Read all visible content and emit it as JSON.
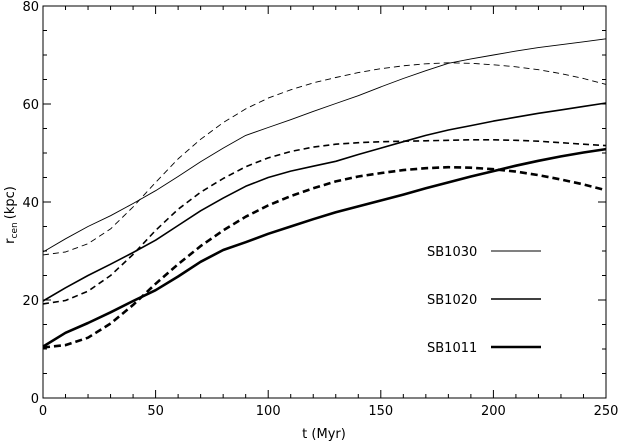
{
  "chart_data": {
    "type": "line",
    "title": "",
    "xlabel": "t (Myr)",
    "ylabel_main": "r",
    "ylabel_sub": "cen",
    "ylabel_unit": "(kpc)",
    "xlim": [
      0,
      250
    ],
    "ylim": [
      0,
      80
    ],
    "xticks": [
      0,
      50,
      100,
      150,
      200,
      250
    ],
    "yticks": [
      0,
      20,
      40,
      60,
      80
    ],
    "grid": false,
    "legend_placement": "right-center",
    "colors": {
      "line": "#000000",
      "axes": "#000000",
      "background": "#ffffff"
    },
    "series": [
      {
        "name": "SB1030",
        "style": "solid",
        "weight": "thin",
        "x": [
          0,
          10,
          20,
          30,
          40,
          50,
          60,
          70,
          80,
          90,
          100,
          110,
          120,
          130,
          140,
          150,
          160,
          170,
          180,
          190,
          200,
          210,
          220,
          230,
          240,
          250
        ],
        "y": [
          29.8,
          32.5,
          35,
          37.2,
          39.7,
          42.3,
          45.2,
          48.2,
          51,
          53.6,
          55.2,
          56.8,
          58.5,
          60.1,
          61.7,
          63.5,
          65.2,
          66.8,
          68.3,
          69.2,
          70,
          70.8,
          71.5,
          72.1,
          72.7,
          73.3
        ]
      },
      {
        "name": "",
        "style": "dashed",
        "weight": "thin",
        "x": [
          0,
          10,
          20,
          30,
          40,
          50,
          60,
          70,
          80,
          90,
          100,
          110,
          120,
          130,
          140,
          150,
          160,
          170,
          180,
          190,
          200,
          210,
          220,
          230,
          240,
          250
        ],
        "y": [
          29.2,
          29.8,
          31.5,
          34.5,
          39,
          44,
          48.8,
          52.8,
          56.2,
          59,
          61.2,
          62.9,
          64.3,
          65.4,
          66.4,
          67.2,
          67.8,
          68.2,
          68.4,
          68.3,
          68,
          67.6,
          67,
          66.2,
          65.2,
          64
        ]
      },
      {
        "name": "SB1020",
        "style": "solid",
        "weight": "medium",
        "x": [
          0,
          10,
          20,
          30,
          40,
          50,
          60,
          70,
          80,
          90,
          100,
          110,
          120,
          130,
          140,
          150,
          160,
          170,
          180,
          190,
          200,
          210,
          220,
          230,
          240,
          250
        ],
        "y": [
          19.8,
          22.5,
          25,
          27.3,
          29.7,
          32.2,
          35.2,
          38.2,
          40.8,
          43.2,
          45,
          46.3,
          47.3,
          48.3,
          49.7,
          51,
          52.3,
          53.6,
          54.7,
          55.6,
          56.5,
          57.3,
          58.1,
          58.8,
          59.5,
          60.2
        ]
      },
      {
        "name": "",
        "style": "dashed",
        "weight": "medium",
        "x": [
          0,
          10,
          20,
          30,
          40,
          50,
          60,
          70,
          80,
          90,
          100,
          110,
          120,
          130,
          140,
          150,
          160,
          170,
          180,
          190,
          200,
          210,
          220,
          230,
          240,
          250
        ],
        "y": [
          19.2,
          19.9,
          21.8,
          25,
          29.3,
          34.2,
          38.5,
          42,
          44.8,
          47.2,
          49,
          50.3,
          51.2,
          51.8,
          52.1,
          52.3,
          52.4,
          52.5,
          52.6,
          52.7,
          52.7,
          52.6,
          52.4,
          52.1,
          51.8,
          51.5
        ]
      },
      {
        "name": "SB1011",
        "style": "solid",
        "weight": "thick",
        "x": [
          0,
          10,
          20,
          30,
          40,
          50,
          60,
          70,
          80,
          90,
          100,
          110,
          120,
          130,
          140,
          150,
          160,
          170,
          180,
          190,
          200,
          210,
          220,
          230,
          240,
          250
        ],
        "y": [
          10.5,
          13.3,
          15.3,
          17.5,
          19.8,
          22,
          24.8,
          27.8,
          30.2,
          31.8,
          33.5,
          35,
          36.5,
          37.9,
          39.1,
          40.3,
          41.5,
          42.8,
          44,
          45.2,
          46.3,
          47.4,
          48.4,
          49.3,
          50.1,
          50.8
        ]
      },
      {
        "name": "",
        "style": "dashed",
        "weight": "thick",
        "x": [
          0,
          10,
          20,
          30,
          40,
          50,
          60,
          70,
          80,
          90,
          100,
          110,
          120,
          130,
          140,
          150,
          160,
          170,
          180,
          190,
          200,
          210,
          220,
          230,
          240,
          250
        ],
        "y": [
          10.3,
          10.8,
          12.3,
          15.2,
          19,
          23.3,
          27.3,
          31,
          34.2,
          37,
          39.3,
          41.2,
          42.8,
          44.2,
          45.2,
          45.9,
          46.5,
          46.9,
          47.1,
          47,
          46.7,
          46.2,
          45.5,
          44.6,
          43.6,
          42.4
        ]
      }
    ]
  }
}
